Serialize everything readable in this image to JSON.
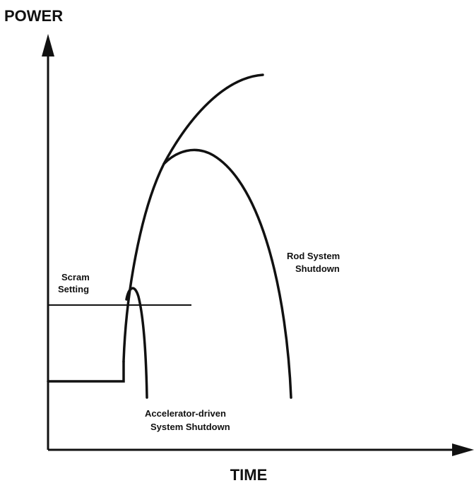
{
  "labels": {
    "y_axis": "POWER",
    "x_axis": "TIME",
    "scram_setting": [
      "Scram",
      "Setting"
    ],
    "rod_shutdown": [
      "Rod System",
      "Shutdown"
    ],
    "accelerator_shutdown": [
      "Accelerator-driven",
      "System Shutdown"
    ]
  }
}
